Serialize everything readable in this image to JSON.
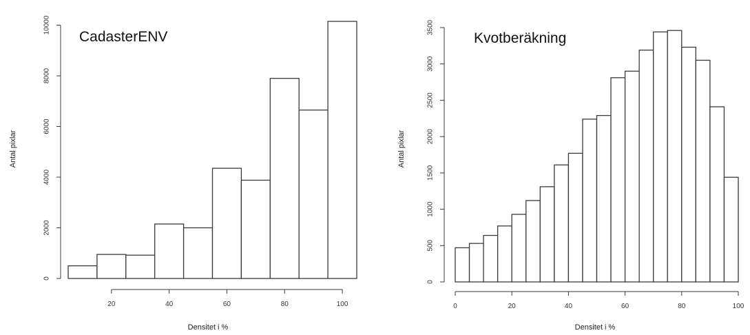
{
  "chart_data": [
    {
      "type": "bar",
      "title": "CadasterENV",
      "xlabel": "Densitet i %",
      "ylabel": "Antal pixlar",
      "bins": [
        [
          5,
          15
        ],
        [
          15,
          25
        ],
        [
          25,
          35
        ],
        [
          35,
          45
        ],
        [
          45,
          55
        ],
        [
          55,
          65
        ],
        [
          65,
          75
        ],
        [
          75,
          85
        ],
        [
          85,
          95
        ],
        [
          95,
          105
        ]
      ],
      "values": [
        500,
        950,
        920,
        2150,
        2000,
        4350,
        3880,
        7900,
        6650,
        10150
      ],
      "xticks": [
        20,
        40,
        60,
        80,
        100
      ],
      "yticks": [
        0,
        2000,
        4000,
        6000,
        8000,
        10000
      ],
      "xlim": [
        5,
        105
      ],
      "ylim": [
        0,
        10150
      ],
      "grid": false
    },
    {
      "type": "bar",
      "title": "Kvotberäkning",
      "xlabel": "Densitet i %",
      "ylabel": "Antal pixlar",
      "bins": [
        [
          0,
          5
        ],
        [
          5,
          10
        ],
        [
          10,
          15
        ],
        [
          15,
          20
        ],
        [
          20,
          25
        ],
        [
          25,
          30
        ],
        [
          30,
          35
        ],
        [
          35,
          40
        ],
        [
          40,
          45
        ],
        [
          45,
          50
        ],
        [
          50,
          55
        ],
        [
          55,
          60
        ],
        [
          60,
          65
        ],
        [
          65,
          70
        ],
        [
          70,
          75
        ],
        [
          75,
          80
        ],
        [
          80,
          85
        ],
        [
          85,
          90
        ],
        [
          90,
          95
        ],
        [
          95,
          100
        ]
      ],
      "values": [
        470,
        530,
        640,
        770,
        930,
        1120,
        1310,
        1610,
        1770,
        2240,
        2290,
        2810,
        2900,
        3190,
        3440,
        3460,
        3230,
        3050,
        2410,
        1440
      ],
      "xticks": [
        0,
        20,
        40,
        60,
        80,
        100
      ],
      "yticks": [
        0,
        500,
        1000,
        1500,
        2000,
        2500,
        3000,
        3500
      ],
      "xlim": [
        0,
        100
      ],
      "ylim": [
        0,
        3500
      ],
      "grid": false
    }
  ]
}
